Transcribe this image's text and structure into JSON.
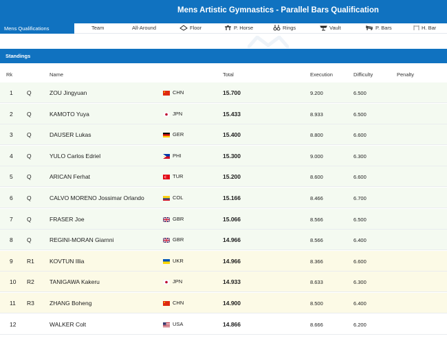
{
  "header": {
    "title": "Mens Artistic Gymnastics - Parallel Bars Qualification"
  },
  "nav": {
    "active": "Mens Qualifications",
    "items": [
      {
        "label": "Team",
        "icon": ""
      },
      {
        "label": "All-Around",
        "icon": ""
      },
      {
        "label": "Floor",
        "icon": "floor-icon"
      },
      {
        "label": "P. Horse",
        "icon": "pommel-horse-icon"
      },
      {
        "label": "Rings",
        "icon": "rings-icon"
      },
      {
        "label": "Vault",
        "icon": "vault-icon"
      },
      {
        "label": "P. Bars",
        "icon": "parallel-bars-icon"
      },
      {
        "label": "H. Bar",
        "icon": "horizontal-bar-icon"
      }
    ]
  },
  "standings": {
    "title": "Standings",
    "columns": {
      "rk": "Rk",
      "name": "Name",
      "total": "Total",
      "execution": "Execution",
      "difficulty": "Difficulty",
      "penalty": "Penalty"
    },
    "rows": [
      {
        "rk": "1",
        "q": "Q",
        "name": "ZOU Jingyuan",
        "nat": "CHN",
        "total": "15.700",
        "exec": "9.200",
        "diff": "6.500",
        "status": "q"
      },
      {
        "rk": "2",
        "q": "Q",
        "name": "KAMOTO Yuya",
        "nat": "JPN",
        "total": "15.433",
        "exec": "8.933",
        "diff": "6.500",
        "status": "q"
      },
      {
        "rk": "3",
        "q": "Q",
        "name": "DAUSER Lukas",
        "nat": "GER",
        "total": "15.400",
        "exec": "8.800",
        "diff": "6.600",
        "status": "q"
      },
      {
        "rk": "4",
        "q": "Q",
        "name": "YULO Carlos Edriel",
        "nat": "PHI",
        "total": "15.300",
        "exec": "9.000",
        "diff": "6.300",
        "status": "q"
      },
      {
        "rk": "5",
        "q": "Q",
        "name": "ARICAN Ferhat",
        "nat": "TUR",
        "total": "15.200",
        "exec": "8.600",
        "diff": "6.600",
        "status": "q"
      },
      {
        "rk": "6",
        "q": "Q",
        "name": "CALVO MORENO Jossimar Orlando",
        "nat": "COL",
        "total": "15.166",
        "exec": "8.466",
        "diff": "6.700",
        "status": "q"
      },
      {
        "rk": "7",
        "q": "Q",
        "name": "FRASER Joe",
        "nat": "GBR",
        "total": "15.066",
        "exec": "8.566",
        "diff": "6.500",
        "status": "q"
      },
      {
        "rk": "8",
        "q": "Q",
        "name": "REGINI-MORAN Giarnni",
        "nat": "GBR",
        "total": "14.966",
        "exec": "8.566",
        "diff": "6.400",
        "status": "q"
      },
      {
        "rk": "9",
        "q": "R1",
        "name": "KOVTUN Illia",
        "nat": "UKR",
        "total": "14.966",
        "exec": "8.366",
        "diff": "6.600",
        "status": "r"
      },
      {
        "rk": "10",
        "q": "R2",
        "name": "TANIGAWA Kakeru",
        "nat": "JPN",
        "total": "14.933",
        "exec": "8.633",
        "diff": "6.300",
        "status": "r"
      },
      {
        "rk": "11",
        "q": "R3",
        "name": "ZHANG Boheng",
        "nat": "CHN",
        "total": "14.900",
        "exec": "8.500",
        "diff": "6.400",
        "status": "r"
      },
      {
        "rk": "12",
        "q": "",
        "name": "WALKER Colt",
        "nat": "USA",
        "total": "14.866",
        "exec": "8.666",
        "diff": "6.200",
        "status": "n"
      }
    ]
  },
  "colors": {
    "accent": "#1072c0",
    "qualified_bg": "#f4faf1",
    "reserve_bg": "#fcfae6"
  }
}
